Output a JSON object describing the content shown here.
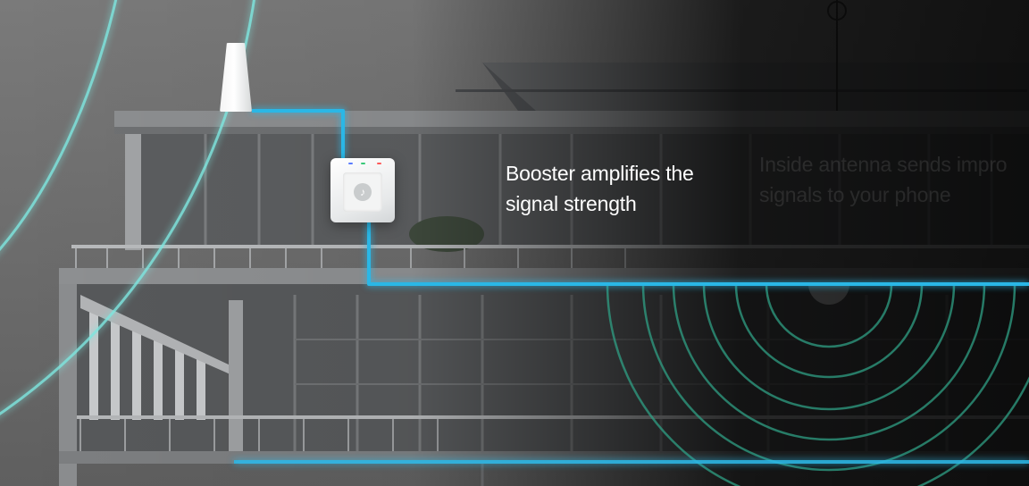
{
  "callouts": {
    "booster": {
      "line1": "Booster amplifies the",
      "line2": "signal strength"
    },
    "inside_antenna": {
      "line1": "Inside antenna sends impro",
      "line2": "signals to your phone"
    }
  },
  "icons": {
    "booster_logo": "signal-logo-icon",
    "outdoor_antenna": "outdoor-antenna-icon",
    "inside_antenna": "inside-antenna-icon"
  },
  "colors": {
    "cable": "#2bb7e6",
    "signal_outdoor": "#7fe6df",
    "signal_indoor": "#2f9f84",
    "led_blue": "#5a7cff",
    "led_green": "#39c97a",
    "led_red": "#ff5a5a"
  }
}
